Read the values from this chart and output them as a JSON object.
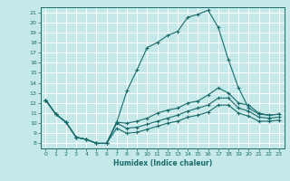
{
  "xlabel": "Humidex (Indice chaleur)",
  "background_color": "#c5e8e8",
  "grid_color": "#ffffff",
  "line_color": "#1a6b6b",
  "xlim": [
    -0.5,
    23.5
  ],
  "ylim": [
    7.5,
    21.5
  ],
  "xticks": [
    0,
    1,
    2,
    3,
    4,
    5,
    6,
    7,
    8,
    9,
    10,
    11,
    12,
    13,
    14,
    15,
    16,
    17,
    18,
    19,
    20,
    21,
    22,
    23
  ],
  "yticks": [
    8,
    9,
    10,
    11,
    12,
    13,
    14,
    15,
    16,
    17,
    18,
    19,
    20,
    21
  ],
  "line1_x": [
    0,
    1,
    2,
    3,
    4,
    5,
    6,
    7,
    8,
    9,
    10,
    11,
    12,
    13,
    14,
    15,
    16,
    17,
    18,
    19,
    20,
    21,
    22,
    23
  ],
  "line1_y": [
    12.3,
    10.9,
    10.1,
    8.6,
    8.4,
    8.0,
    8.0,
    10.1,
    13.2,
    15.3,
    17.5,
    18.0,
    18.7,
    19.1,
    20.5,
    20.8,
    21.2,
    19.5,
    16.3,
    13.5,
    11.5,
    10.9,
    10.8,
    10.9
  ],
  "line2_x": [
    0,
    1,
    2,
    3,
    4,
    5,
    6,
    7,
    8,
    9,
    10,
    11,
    12,
    13,
    14,
    15,
    16,
    17,
    18,
    19,
    20,
    21,
    22,
    23
  ],
  "line2_y": [
    12.3,
    10.9,
    10.1,
    8.6,
    8.4,
    8.0,
    8.0,
    10.1,
    10.0,
    10.2,
    10.5,
    11.0,
    11.3,
    11.5,
    12.0,
    12.2,
    12.8,
    13.5,
    13.0,
    12.0,
    11.8,
    11.0,
    10.8,
    10.9
  ],
  "line3_x": [
    0,
    1,
    2,
    3,
    4,
    5,
    6,
    7,
    8,
    9,
    10,
    11,
    12,
    13,
    14,
    15,
    16,
    17,
    18,
    19,
    20,
    21,
    22,
    23
  ],
  "line3_y": [
    12.3,
    10.9,
    10.1,
    8.6,
    8.4,
    8.0,
    8.0,
    10.0,
    9.5,
    9.6,
    9.9,
    10.2,
    10.5,
    10.8,
    11.2,
    11.5,
    11.8,
    12.5,
    12.5,
    11.5,
    11.2,
    10.6,
    10.5,
    10.6
  ],
  "line4_x": [
    0,
    1,
    2,
    3,
    4,
    5,
    6,
    7,
    8,
    9,
    10,
    11,
    12,
    13,
    14,
    15,
    16,
    17,
    18,
    19,
    20,
    21,
    22,
    23
  ],
  "line4_y": [
    12.3,
    10.9,
    10.1,
    8.6,
    8.4,
    8.0,
    8.0,
    9.5,
    9.0,
    9.1,
    9.4,
    9.7,
    10.0,
    10.2,
    10.6,
    10.8,
    11.1,
    11.8,
    11.8,
    11.0,
    10.7,
    10.2,
    10.2,
    10.3
  ]
}
